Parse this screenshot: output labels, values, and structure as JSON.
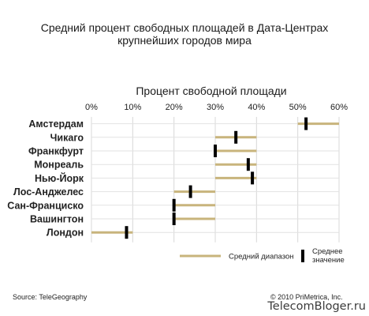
{
  "chart_data": {
    "type": "range-bar",
    "title": [
      "Средний процент свободных площадей в Дата-Центрах",
      "крупнейших городов мира"
    ],
    "xlabel": "Процент свободной площади",
    "xlim": [
      0,
      60
    ],
    "ticks": [
      "0%",
      "10%",
      "20%",
      "30%",
      "40%",
      "50%",
      "60%"
    ],
    "categories": [
      "Амстердам",
      "Чикаго",
      "Франкфурт",
      "Монреаль",
      "Нью-Йорк",
      "Лос-Анджелес",
      "Сан-Франциско",
      "Вашингтон",
      "Лондон"
    ],
    "ranges": [
      [
        50,
        60
      ],
      [
        30,
        40
      ],
      [
        30,
        40
      ],
      [
        30,
        40
      ],
      [
        30,
        40
      ],
      [
        20,
        30
      ],
      [
        20,
        30
      ],
      [
        20,
        30
      ],
      [
        0,
        10
      ]
    ],
    "averages": [
      52,
      35,
      30,
      38,
      39,
      24,
      20,
      20,
      8.5
    ],
    "legend": {
      "range": "Средний диапазон",
      "average": "Среднее значение",
      "range_color": "#c8b47c",
      "average_color": "#000000"
    }
  },
  "footer": {
    "source": "Source: TeleGeography",
    "copyright": "© 2010 PriMetrica, Inc."
  },
  "watermark": "TelecomBloger.ru"
}
